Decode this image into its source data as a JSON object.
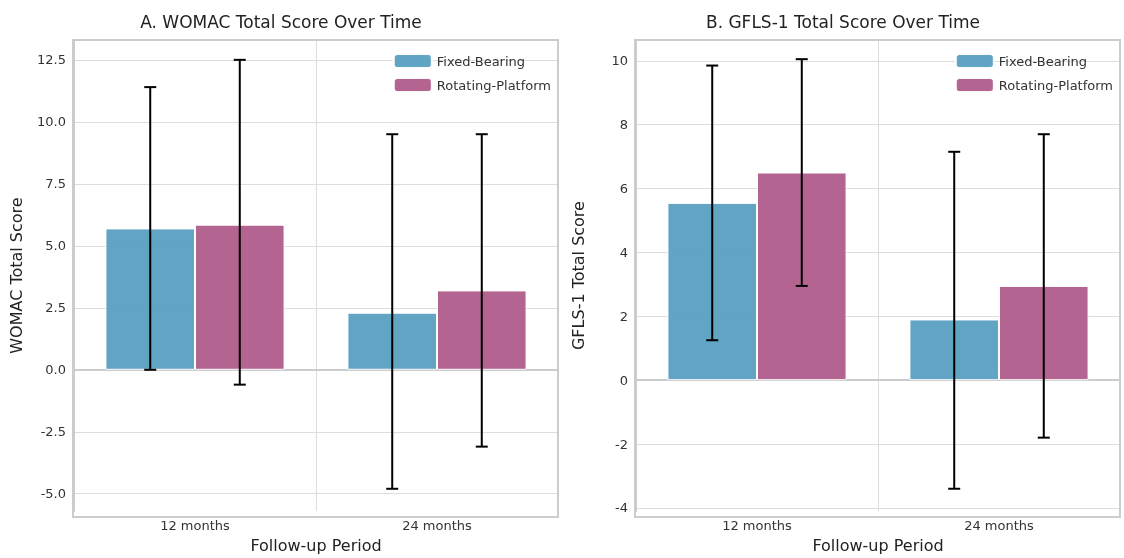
{
  "chart_data": [
    {
      "type": "bar",
      "title": "A. WOMAC Total Score Over Time",
      "xlabel": "Follow-up Period",
      "ylabel": "WOMAC Total Score",
      "categories": [
        "12 months",
        "24 months"
      ],
      "series": [
        {
          "name": "Fixed-Bearing",
          "color": "#5a9fc0",
          "values": [
            5.7,
            2.3
          ],
          "errors": [
            [
              0.0,
              11.4
            ],
            [
              -4.8,
              9.5
            ]
          ]
        },
        {
          "name": "Rotating-Platform",
          "color": "#b05c8a",
          "values": [
            5.85,
            3.2
          ],
          "errors": [
            [
              -0.6,
              12.5
            ],
            [
              -3.1,
              9.5
            ]
          ]
        }
      ],
      "ylim": [
        -5.7,
        13.3
      ],
      "yticks": [
        {
          "value": -5,
          "label": "-5.0"
        },
        -2.5,
        {
          "value": 0,
          "label": "0.0"
        },
        2.5,
        {
          "value": 5,
          "label": "5.0"
        },
        7.5,
        {
          "value": 10,
          "label": "10.0"
        },
        12.5
      ],
      "grid": true,
      "legend": "top right"
    },
    {
      "type": "bar",
      "title": "B. GFLS-1 Total Score Over Time",
      "xlabel": "Follow-up Period",
      "ylabel": "GFLS-1 Total Score",
      "categories": [
        "12 months",
        "24 months"
      ],
      "series": [
        {
          "name": "Fixed-Bearing",
          "color": "#5a9fc0",
          "values": [
            5.55,
            1.9
          ],
          "errors": [
            [
              1.25,
              9.85
            ],
            [
              -3.4,
              7.15
            ]
          ]
        },
        {
          "name": "Rotating-Platform",
          "color": "#b05c8a",
          "values": [
            6.5,
            2.95
          ],
          "errors": [
            [
              2.95,
              10.05
            ],
            [
              -1.8,
              7.7
            ]
          ]
        }
      ],
      "ylim": [
        -4.1,
        10.65
      ],
      "yticks": [
        -4,
        -2,
        0,
        2,
        4,
        6,
        8,
        10
      ],
      "grid": true,
      "legend": "top right"
    }
  ]
}
